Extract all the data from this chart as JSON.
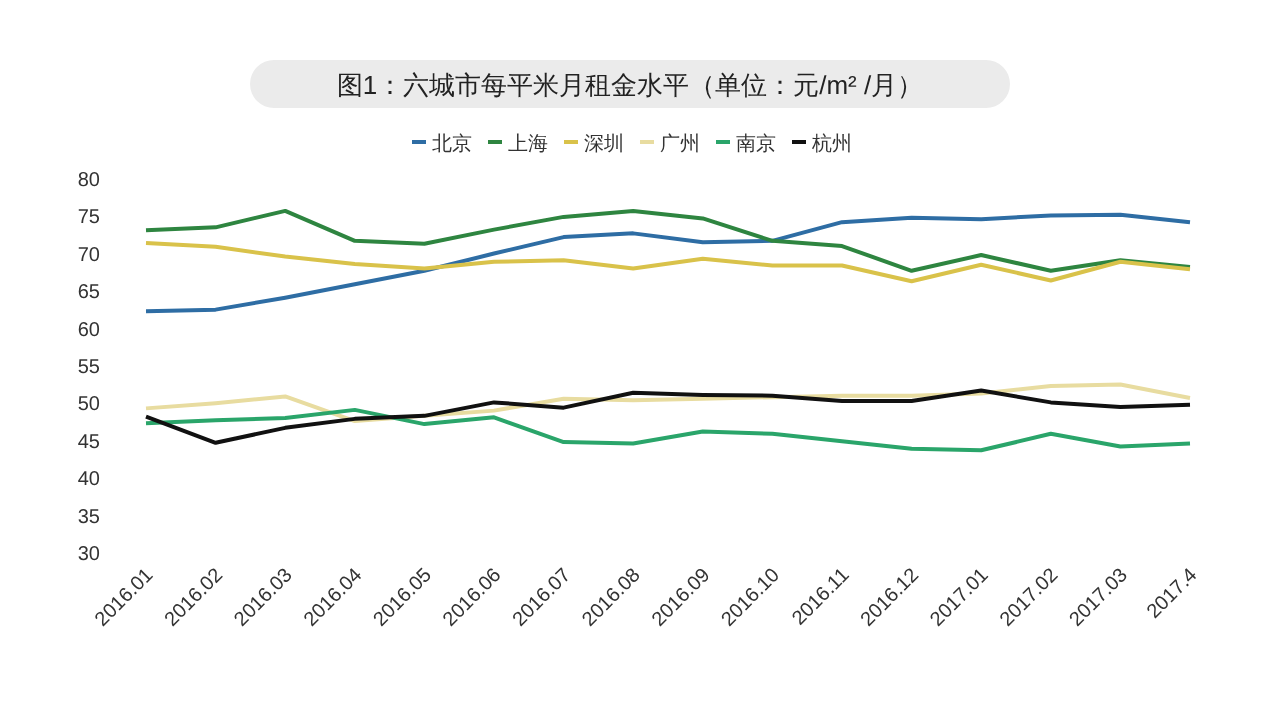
{
  "chart_data": {
    "type": "line",
    "title": "图1：六城市每平米月租金水平（单位：元/m² /月）",
    "categories": [
      "2016.01",
      "2016.02",
      "2016.03",
      "2016.04",
      "2016.05",
      "2016.06",
      "2016.07",
      "2016.08",
      "2016.09",
      "2016.10",
      "2016.11",
      "2016.12",
      "2017.01",
      "2017.02",
      "2017.03",
      "2017.4"
    ],
    "series": [
      {
        "name": "北京",
        "color": "#2e6da4",
        "values": [
          62.2,
          62.4,
          64.0,
          65.8,
          67.6,
          69.9,
          72.1,
          72.6,
          71.4,
          71.6,
          74.1,
          74.7,
          74.5,
          75.0,
          75.1,
          74.1
        ]
      },
      {
        "name": "上海",
        "color": "#2e8540",
        "values": [
          73.0,
          73.4,
          75.6,
          71.6,
          71.2,
          73.1,
          74.8,
          75.6,
          74.6,
          71.6,
          70.9,
          67.6,
          69.7,
          67.6,
          69.0,
          68.1
        ]
      },
      {
        "name": "深圳",
        "color": "#d9c24a",
        "values": [
          71.3,
          70.8,
          69.5,
          68.5,
          67.9,
          68.8,
          69.0,
          67.9,
          69.2,
          68.3,
          68.3,
          66.2,
          68.4,
          66.3,
          68.8,
          67.8
        ]
      },
      {
        "name": "广州",
        "color": "#e8dca0",
        "values": [
          49.2,
          49.9,
          50.8,
          47.5,
          48.2,
          48.9,
          50.5,
          50.3,
          50.5,
          50.7,
          50.9,
          50.9,
          51.2,
          52.2,
          52.4,
          50.6
        ]
      },
      {
        "name": "南京",
        "color": "#2aa56a",
        "values": [
          47.2,
          47.6,
          47.9,
          49.0,
          47.1,
          48.0,
          44.7,
          44.5,
          46.1,
          45.8,
          44.8,
          43.8,
          43.6,
          45.8,
          44.1,
          44.5
        ]
      },
      {
        "name": "杭州",
        "color": "#111111",
        "values": [
          48.1,
          44.6,
          46.6,
          47.8,
          48.2,
          50.0,
          49.3,
          51.3,
          51.0,
          50.9,
          50.2,
          50.2,
          51.6,
          50.0,
          49.4,
          49.7
        ]
      }
    ],
    "ylim": [
      30,
      80
    ],
    "yticks": [
      30,
      35,
      40,
      45,
      50,
      55,
      60,
      65,
      70,
      75,
      80
    ],
    "legend": "top",
    "grid": false,
    "marker": "none",
    "line_style": "solid"
  }
}
